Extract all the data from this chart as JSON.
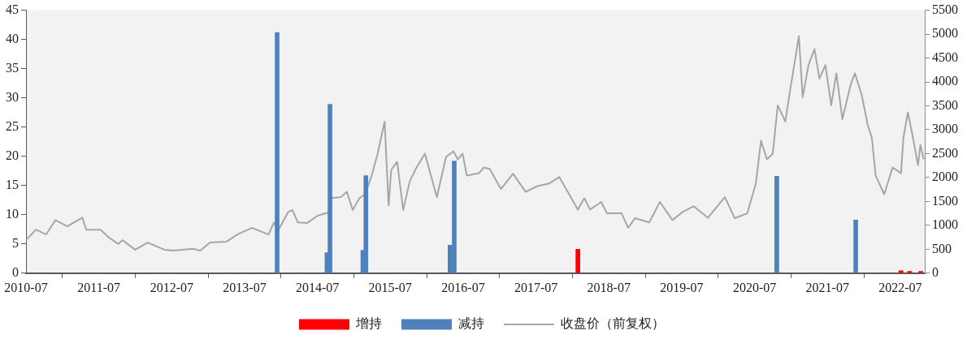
{
  "chart_data": {
    "type": "bar",
    "xlim": [
      "2010-07",
      "2022-11"
    ],
    "xticks": [
      "2010-07",
      "2011-07",
      "2012-07",
      "2013-07",
      "2014-07",
      "2015-07",
      "2016-07",
      "2017-07",
      "2018-07",
      "2019-07",
      "2020-07",
      "2021-07",
      "2022-07"
    ],
    "ylim": [
      0,
      45
    ],
    "yticks": [
      0,
      5,
      10,
      15,
      20,
      25,
      30,
      35,
      40,
      45
    ],
    "y2lim": [
      0,
      5500
    ],
    "y2ticks": [
      0,
      500,
      1000,
      1500,
      2000,
      2500,
      3000,
      3500,
      4000,
      4500,
      5000,
      5500
    ],
    "legend": "bottom",
    "series": [
      {
        "name": "增持",
        "color": "#ff0000",
        "x": [
          "2018-01-27",
          "2022-07-05",
          "2022-08-17",
          "2022-10-12"
        ],
        "values": [
          4.1,
          0.4,
          0.3,
          0.3
        ]
      },
      {
        "name": "减持",
        "color": "#4f81bd",
        "x": [
          "2013-12-11",
          "2014-08-18",
          "2014-09-02",
          "2015-02-14",
          "2015-03-01",
          "2016-04-26",
          "2016-05-17",
          "2020-10-20",
          "2021-11-20"
        ],
        "values": [
          41.2,
          3.5,
          28.9,
          3.9,
          16.7,
          4.8,
          19.2,
          16.6,
          9.1
        ]
      },
      {
        "name": "收盘价（前复权）",
        "type": "line",
        "axis": "y2",
        "color": "#a6a6a6",
        "x": [
          "2010-07-01",
          "2010-08-20",
          "2010-10-10",
          "2010-11-26",
          "2011-01-24",
          "2011-04-09",
          "2011-04-29",
          "2011-07-10",
          "2011-08-22",
          "2011-10-07",
          "2011-10-28",
          "2011-12-30",
          "2012-03-02",
          "2012-05-25",
          "2012-07-07",
          "2012-10-17",
          "2012-11-20",
          "2013-01-09",
          "2013-04-02",
          "2013-05-26",
          "2013-08-07",
          "2013-10-29",
          "2013-11-25",
          "2013-12-16",
          "2014-02-05",
          "2014-02-26",
          "2014-03-25",
          "2014-05-11",
          "2014-07-01",
          "2014-08-25",
          "2014-09-11",
          "2014-10-27",
          "2014-11-26",
          "2014-12-25",
          "2015-01-28",
          "2015-02-26",
          "2015-03-30",
          "2015-04-29",
          "2015-06-03",
          "2015-06-23",
          "2015-07-06",
          "2015-08-05",
          "2015-09-04",
          "2015-10-07",
          "2015-11-10",
          "2015-12-22",
          "2016-02-20",
          "2016-04-06",
          "2016-05-13",
          "2016-06-04",
          "2016-06-28",
          "2016-07-19",
          "2016-09-18",
          "2016-10-12",
          "2016-11-11",
          "2017-01-06",
          "2017-03-08",
          "2017-05-10",
          "2017-07-08",
          "2017-09-02",
          "2017-10-26",
          "2017-12-07",
          "2018-01-27",
          "2018-02-28",
          "2018-03-29",
          "2018-05-24",
          "2018-06-22",
          "2018-09-03",
          "2018-10-06",
          "2018-11-09",
          "2019-01-20",
          "2019-03-14",
          "2019-05-16",
          "2019-07-06",
          "2019-08-30",
          "2019-11-10",
          "2020-02-03",
          "2020-03-23",
          "2020-05-25",
          "2020-07-07",
          "2020-08-02",
          "2020-09-01",
          "2020-09-30",
          "2020-10-25",
          "2020-12-02",
          "2020-12-27",
          "2021-01-26",
          "2021-02-08",
          "2021-02-27",
          "2021-03-28",
          "2021-04-27",
          "2021-05-22",
          "2021-06-21",
          "2021-07-20",
          "2021-08-15",
          "2021-09-14",
          "2021-10-26",
          "2021-11-16",
          "2021-12-20",
          "2022-01-19",
          "2022-02-09",
          "2022-02-28",
          "2022-04-12",
          "2022-05-24",
          "2022-07-05",
          "2022-07-17",
          "2022-08-08",
          "2022-08-29",
          "2022-09-28",
          "2022-10-10",
          "2022-10-27"
        ],
        "values": [
          690,
          910,
          810,
          1110,
          980,
          1160,
          910,
          910,
          740,
          610,
          690,
          490,
          640,
          490,
          470,
          510,
          470,
          640,
          660,
          810,
          950,
          810,
          1060,
          890,
          1280,
          1320,
          1060,
          1050,
          1200,
          1270,
          1570,
          1590,
          1700,
          1320,
          1570,
          1650,
          2040,
          2500,
          3170,
          1420,
          2160,
          2330,
          1320,
          1920,
          2210,
          2500,
          1590,
          2430,
          2550,
          2380,
          2500,
          2040,
          2090,
          2210,
          2180,
          1760,
          2080,
          1700,
          1820,
          1870,
          2010,
          1700,
          1330,
          1570,
          1330,
          1490,
          1250,
          1250,
          950,
          1150,
          1060,
          1490,
          1110,
          1280,
          1400,
          1160,
          1590,
          1150,
          1250,
          1870,
          2770,
          2380,
          2500,
          3510,
          3170,
          3850,
          4620,
          4960,
          3680,
          4350,
          4690,
          4070,
          4350,
          3510,
          4180,
          3220,
          3950,
          4180,
          3730,
          3100,
          2830,
          2040,
          1650,
          2210,
          2090,
          2830,
          3360,
          2940,
          2260,
          2680,
          2380
        ]
      }
    ]
  }
}
